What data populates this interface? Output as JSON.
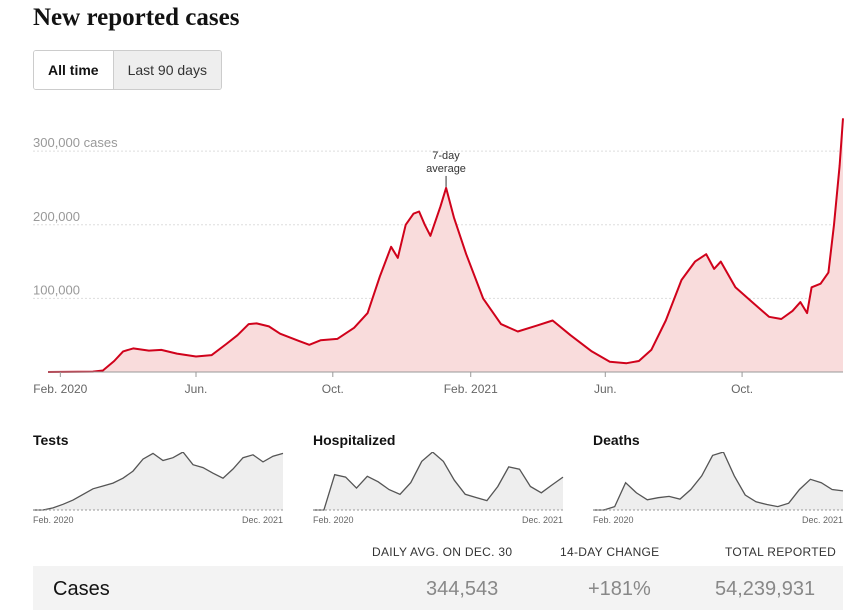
{
  "header": {
    "title": "New reported cases"
  },
  "tabs": [
    {
      "label": "All time",
      "active": true
    },
    {
      "label": "Last 90 days",
      "active": false
    }
  ],
  "colors": {
    "line": "#d0021b",
    "area": "#f9dcdc",
    "mini_line": "#555555",
    "mini_area": "#eeeeee"
  },
  "chart_data": [
    {
      "type": "area",
      "title": "New reported cases",
      "y_tick_labels": [
        "300,000 cases",
        "200,000",
        "100,000"
      ],
      "y_ticks": [
        300000,
        200000,
        100000
      ],
      "ylim": [
        0,
        345000
      ],
      "x_tick_labels": [
        "Feb. 2020",
        "Jun.",
        "Oct.",
        "Feb. 2021",
        "Jun.",
        "Oct."
      ],
      "x_ticks": [
        "2020-02-01",
        "2020-06-01",
        "2020-10-01",
        "2021-02-01",
        "2021-06-01",
        "2021-10-01"
      ],
      "xlim": [
        "2020-01-21",
        "2021-12-30"
      ],
      "annotation": {
        "text_line1": "7-day",
        "text_line2": "average",
        "date": "2021-01-10"
      },
      "grid": true,
      "series": [
        {
          "values": [
            [
              "2020-01-21",
              0
            ],
            [
              "2020-03-01",
              500
            ],
            [
              "2020-03-10",
              2000
            ],
            [
              "2020-03-20",
              15000
            ],
            [
              "2020-03-28",
              28000
            ],
            [
              "2020-04-06",
              32000
            ],
            [
              "2020-04-20",
              29000
            ],
            [
              "2020-05-01",
              30000
            ],
            [
              "2020-05-15",
              25000
            ],
            [
              "2020-06-01",
              21000
            ],
            [
              "2020-06-15",
              23000
            ],
            [
              "2020-06-28",
              38000
            ],
            [
              "2020-07-08",
              50000
            ],
            [
              "2020-07-18",
              65000
            ],
            [
              "2020-07-25",
              66000
            ],
            [
              "2020-08-05",
              62000
            ],
            [
              "2020-08-15",
              52000
            ],
            [
              "2020-09-01",
              42000
            ],
            [
              "2020-09-10",
              37000
            ],
            [
              "2020-09-20",
              43000
            ],
            [
              "2020-10-05",
              45000
            ],
            [
              "2020-10-20",
              60000
            ],
            [
              "2020-11-01",
              80000
            ],
            [
              "2020-11-12",
              130000
            ],
            [
              "2020-11-22",
              170000
            ],
            [
              "2020-11-28",
              155000
            ],
            [
              "2020-12-05",
              200000
            ],
            [
              "2020-12-12",
              215000
            ],
            [
              "2020-12-17",
              218000
            ],
            [
              "2020-12-22",
              200000
            ],
            [
              "2020-12-27",
              185000
            ],
            [
              "2021-01-05",
              225000
            ],
            [
              "2021-01-10",
              250000
            ],
            [
              "2021-01-17",
              210000
            ],
            [
              "2021-01-28",
              160000
            ],
            [
              "2021-02-12",
              100000
            ],
            [
              "2021-02-28",
              65000
            ],
            [
              "2021-03-15",
              55000
            ],
            [
              "2021-04-01",
              63000
            ],
            [
              "2021-04-15",
              70000
            ],
            [
              "2021-05-01",
              50000
            ],
            [
              "2021-05-20",
              28000
            ],
            [
              "2021-06-05",
              14000
            ],
            [
              "2021-06-20",
              12000
            ],
            [
              "2021-07-01",
              15000
            ],
            [
              "2021-07-12",
              30000
            ],
            [
              "2021-07-25",
              70000
            ],
            [
              "2021-08-08",
              125000
            ],
            [
              "2021-08-20",
              150000
            ],
            [
              "2021-08-30",
              160000
            ],
            [
              "2021-09-06",
              140000
            ],
            [
              "2021-09-12",
              150000
            ],
            [
              "2021-09-25",
              115000
            ],
            [
              "2021-10-10",
              95000
            ],
            [
              "2021-10-25",
              75000
            ],
            [
              "2021-11-05",
              72000
            ],
            [
              "2021-11-15",
              83000
            ],
            [
              "2021-11-22",
              95000
            ],
            [
              "2021-11-28",
              80000
            ],
            [
              "2021-12-02",
              115000
            ],
            [
              "2021-12-10",
              120000
            ],
            [
              "2021-12-17",
              135000
            ],
            [
              "2021-12-22",
              200000
            ],
            [
              "2021-12-27",
              280000
            ],
            [
              "2021-12-30",
              344543
            ]
          ]
        }
      ]
    },
    {
      "type": "area",
      "title": "Tests",
      "x_tick_labels": [
        "Feb. 2020",
        "Dec. 2021"
      ],
      "values": [
        0,
        0,
        3,
        8,
        14,
        22,
        30,
        34,
        38,
        45,
        55,
        72,
        80,
        70,
        74,
        82,
        64,
        60,
        52,
        45,
        58,
        74,
        78,
        68,
        76,
        80
      ]
    },
    {
      "type": "area",
      "title": "Hospitalized",
      "x_tick_labels": [
        "Feb. 2020",
        "Dec. 2021"
      ],
      "values": [
        0,
        0,
        45,
        42,
        28,
        43,
        36,
        26,
        20,
        35,
        62,
        74,
        62,
        38,
        20,
        16,
        12,
        30,
        55,
        52,
        30,
        22,
        32,
        42
      ]
    },
    {
      "type": "area",
      "title": "Deaths",
      "x_tick_labels": [
        "Feb. 2020",
        "Dec. 2021"
      ],
      "values": [
        0,
        0,
        5,
        40,
        25,
        15,
        18,
        20,
        16,
        30,
        50,
        80,
        85,
        50,
        22,
        12,
        8,
        5,
        10,
        30,
        45,
        40,
        30,
        28
      ]
    }
  ],
  "summary": {
    "headers": [
      "DAILY AVG. ON DEC. 30",
      "14-DAY CHANGE",
      "TOTAL REPORTED"
    ],
    "row_label": "Cases",
    "daily_avg": "344,543",
    "change": "+181%",
    "total": "54,239,931"
  }
}
